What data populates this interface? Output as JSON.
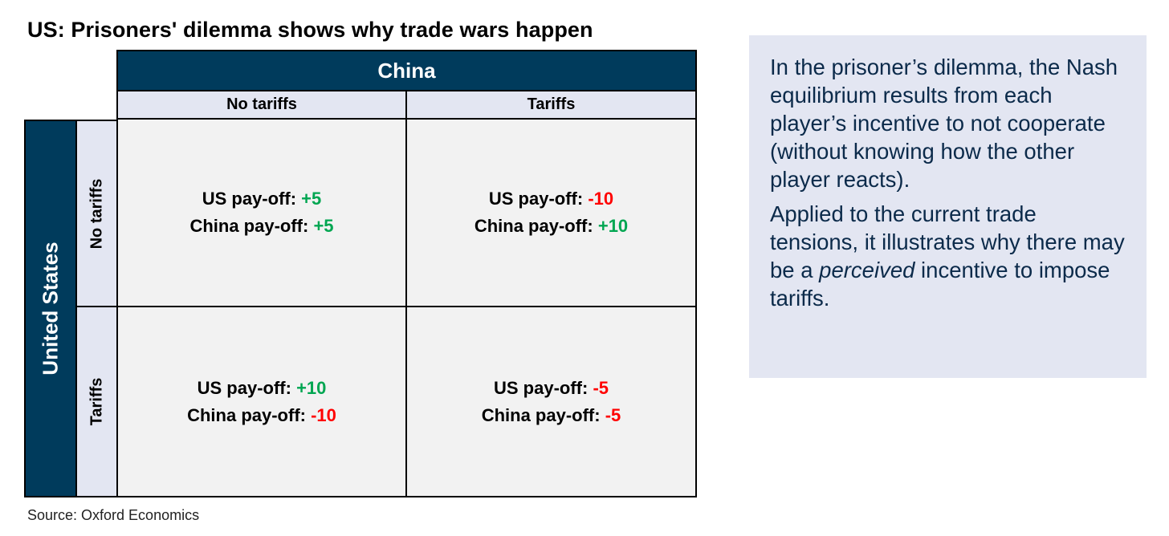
{
  "title": "US: Prisoners' dilemma shows why trade wars happen",
  "matrix": {
    "column_player": "China",
    "row_player": "United States",
    "columns": [
      "No tariffs",
      "Tariffs"
    ],
    "rows": [
      "No tariffs",
      "Tariffs"
    ],
    "us_label": "US pay-off:",
    "china_label": "China pay-off:",
    "cells": [
      {
        "row": "No tariffs",
        "col": "No tariffs",
        "us": "+5",
        "china": "+5"
      },
      {
        "row": "No tariffs",
        "col": "Tariffs",
        "us": "-10",
        "china": "+10"
      },
      {
        "row": "Tariffs",
        "col": "No tariffs",
        "us": "+10",
        "china": "-10"
      },
      {
        "row": "Tariffs",
        "col": "Tariffs",
        "us": "-5",
        "china": "-5"
      }
    ]
  },
  "source": "Source: Oxford Economics",
  "sidebox": {
    "para1": "In the prisoner’s dilemma, the Nash equilibrium results from each player’s incentive to not cooperate (without knowing how the other player reacts).",
    "para2_before": "Applied to the current trade tensions, it illustrates why there may be a ",
    "para2_em": "perceived",
    "para2_after": " incentive to impose tariffs."
  },
  "colors": {
    "header_navy": "#003b5c",
    "header_light": "#e3e6f2",
    "cell_bg": "#f2f2f2",
    "positive": "#00a651",
    "negative": "#ff0000",
    "sidebox_text": "#0b2a4a"
  }
}
